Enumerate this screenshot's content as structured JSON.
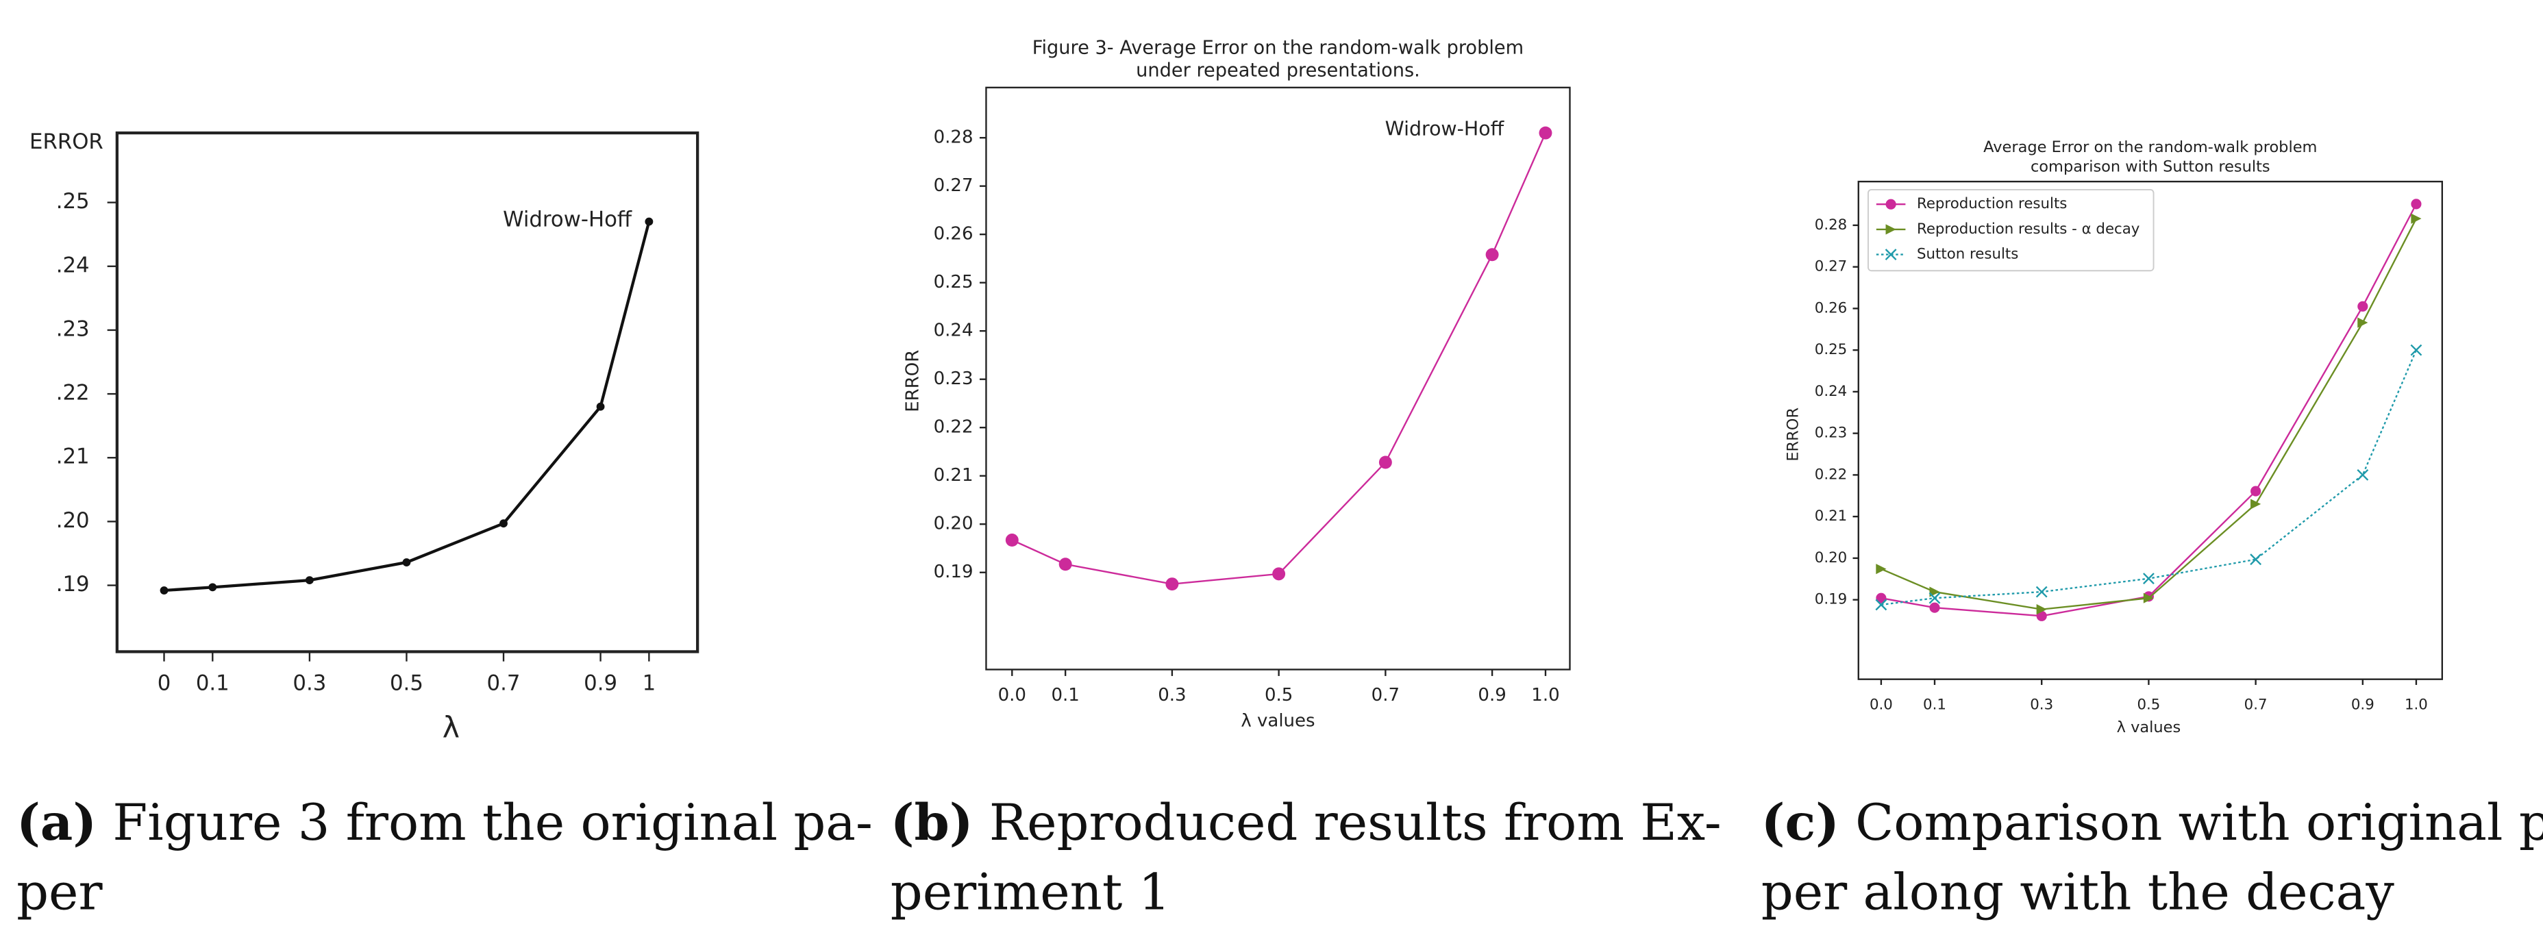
{
  "chart_data": [
    {
      "type": "line",
      "ylabel": "ERROR",
      "xlabel": "λ",
      "annotation": "Widrow-Hoff",
      "caption": {
        "label": "(a)",
        "lines": [
          "Figure 3 from the original pa-",
          "per"
        ]
      },
      "x": [
        0,
        0.1,
        0.3,
        0.5,
        0.7,
        0.9,
        1
      ],
      "values": [
        0.1892,
        0.1897,
        0.1908,
        0.1936,
        0.1997,
        0.218,
        0.247
      ],
      "color": "#111111",
      "marker": "dot",
      "linestyle": "solid",
      "xlim": [
        -0.097,
        1.1
      ],
      "ylim": [
        0.1796,
        0.2609
      ],
      "xticks": [
        0,
        {
          "value": 0.1,
          "label": "0.1"
        },
        {
          "value": 0.3,
          "label": "0.3"
        },
        {
          "value": 0.5,
          "label": "0.5"
        },
        {
          "value": 0.7,
          "label": "0.7"
        },
        {
          "value": 0.9,
          "label": "0.9"
        },
        1
      ],
      "yticks": [
        {
          "value": 0.19,
          "label": ".19"
        },
        {
          "value": 0.2,
          "label": ".20"
        },
        {
          "value": 0.21,
          "label": ".21"
        },
        {
          "value": 0.22,
          "label": ".22"
        },
        {
          "value": 0.23,
          "label": ".23"
        },
        {
          "value": 0.24,
          "label": ".24"
        },
        {
          "value": 0.25,
          "label": ".25"
        }
      ]
    },
    {
      "type": "line",
      "title": [
        "Figure 3- Average Error on the random-walk problem",
        "under repeated presentations."
      ],
      "ylabel": "ERROR",
      "xlabel": "λ values",
      "annotation": "Widrow-Hoff",
      "caption": {
        "label": "(b)",
        "lines": [
          "Reproduced results from Ex-",
          "periment 1"
        ]
      },
      "x": [
        0,
        0.1,
        0.3,
        0.5,
        0.7,
        0.9,
        1
      ],
      "values": [
        0.1967,
        0.1917,
        0.1876,
        0.1897,
        0.2128,
        0.2558,
        0.281
      ],
      "color": "#cc2a9a",
      "marker": "circle",
      "linestyle": "solid",
      "xlim": [
        -0.0486,
        1.0456
      ],
      "ylim": [
        0.1699,
        0.2904
      ],
      "xticks": [
        {
          "value": 0,
          "label": "0.0"
        },
        0.1,
        0.3,
        0.5,
        0.7,
        0.9,
        {
          "value": 1,
          "label": "1.0"
        }
      ],
      "yticks": [
        {
          "value": 0.19,
          "label": "0.19"
        },
        {
          "value": 0.2,
          "label": "0.20"
        },
        0.21,
        0.22,
        0.23,
        0.24,
        0.25,
        0.26,
        0.27,
        0.28
      ]
    },
    {
      "type": "line",
      "title": [
        "Average Error on the random-walk problem",
        "comparison with Sutton results"
      ],
      "ylabel": "ERROR",
      "xlabel": "λ values",
      "legend": "upper left",
      "caption": {
        "label": "(c)",
        "lines": [
          "Comparison with original pa-",
          "per along with the decay"
        ]
      },
      "x": [
        0,
        0.1,
        0.3,
        0.5,
        0.7,
        0.9,
        1
      ],
      "series": [
        {
          "name": "Reproduction results",
          "color": "#cc2a9a",
          "marker": "circle",
          "linestyle": "solid",
          "values": [
            0.1904,
            0.1881,
            0.1861,
            0.1908,
            0.2161,
            0.2605,
            0.2851
          ]
        },
        {
          "name": "Reproduction results - α decay",
          "color": "#6b8e23",
          "marker": "triangle-right",
          "linestyle": "solid",
          "values": [
            0.1974,
            0.1919,
            0.1877,
            0.1904,
            0.213,
            0.2566,
            0.2816
          ]
        },
        {
          "name": "Sutton results",
          "color": "#1f9aaa",
          "marker": "x",
          "linestyle": "dotted",
          "values": [
            0.1888,
            0.1904,
            0.1919,
            0.1951,
            0.1997,
            0.22,
            0.25
          ]
        }
      ],
      "xlim": [
        -0.0424,
        1.0485
      ],
      "ylim": [
        0.1709,
        0.2905
      ],
      "xticks": [
        {
          "value": 0,
          "label": "0.0"
        },
        0.1,
        0.3,
        0.5,
        0.7,
        0.9,
        {
          "value": 1,
          "label": "1.0"
        }
      ],
      "yticks": [
        {
          "value": 0.19,
          "label": "0.19"
        },
        {
          "value": 0.2,
          "label": "0.20"
        },
        0.21,
        0.22,
        0.23,
        0.24,
        0.25,
        0.26,
        0.27,
        0.28
      ]
    }
  ]
}
